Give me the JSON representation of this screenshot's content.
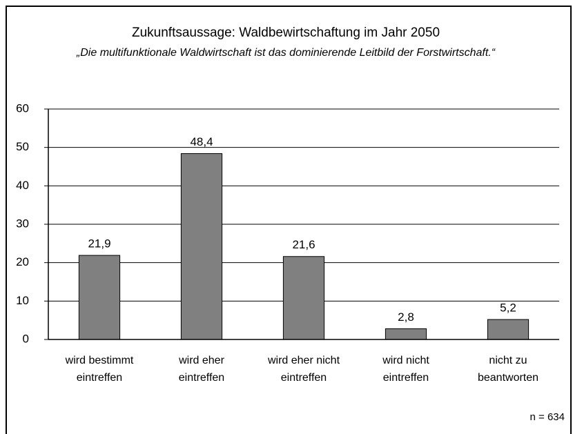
{
  "chart_data": {
    "type": "bar",
    "title": "Zukunftsaussage: Waldbewirtschaftung im Jahr 2050",
    "subtitle": "„Die multifunktionale Waldwirtschaft ist das dominierende Leitbild der Forstwirtschaft.“",
    "categories": [
      "wird bestimmt eintreffen",
      "wird eher eintreffen",
      "wird eher nicht eintreffen",
      "wird nicht eintreffen",
      "nicht zu beantworten"
    ],
    "values": [
      21.9,
      48.4,
      21.6,
      2.8,
      5.2
    ],
    "value_labels": [
      "21,9",
      "48,4",
      "21,6",
      "2,8",
      "5,2"
    ],
    "color": "#808080",
    "ylim": [
      0,
      60
    ],
    "yticks": [
      0,
      10,
      20,
      30,
      40,
      50,
      60
    ],
    "grid": true,
    "annotation": "n = 634"
  }
}
